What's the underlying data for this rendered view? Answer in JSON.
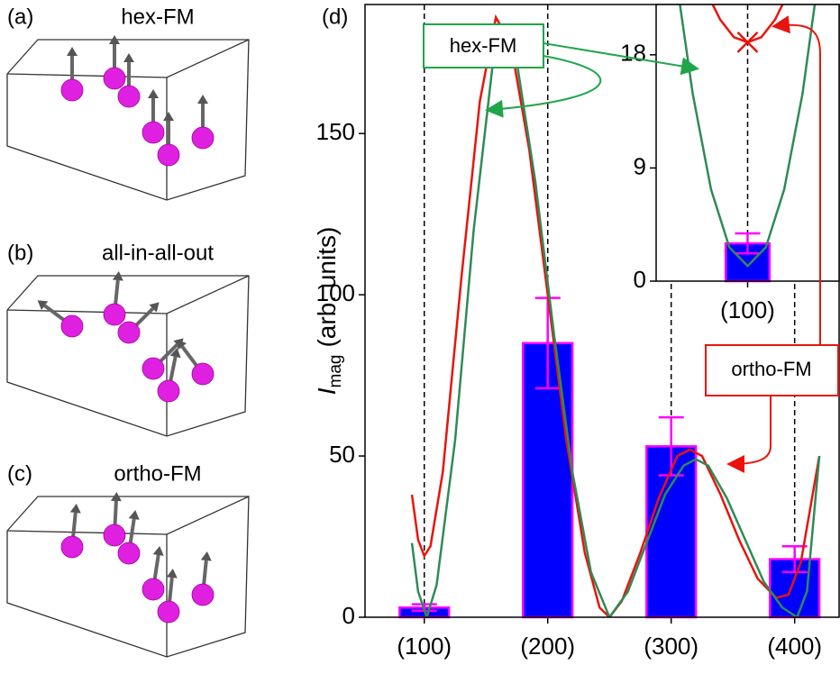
{
  "panels": [
    {
      "label": "(a)",
      "title": "hex-FM"
    },
    {
      "label": "(b)",
      "title": "all-in-all-out"
    },
    {
      "label": "(c)",
      "title": "ortho-FM"
    }
  ],
  "chart_data": [
    {
      "type": "bar",
      "label": "(d)",
      "ylabel": {
        "symbol": "I",
        "subscript": "mag",
        "text": "(arb. units)"
      },
      "x": [
        1,
        2,
        3,
        4
      ],
      "values": [
        3,
        85,
        53,
        18
      ],
      "errors": [
        1,
        14,
        9,
        4
      ],
      "color": "#0000ff",
      "edgecolor": "#ff00ff",
      "xlim": [
        0.52,
        4.36
      ],
      "ylim": [
        0,
        190
      ],
      "xticks": [
        {
          "value": 1,
          "label": "(100)"
        },
        {
          "value": 2,
          "label": "(200)"
        },
        {
          "value": 3,
          "label": "(300)"
        },
        {
          "value": 4,
          "label": "(400)"
        }
      ],
      "yticks": [
        0,
        50,
        100,
        150
      ],
      "grid": "dashed-x",
      "series": [
        {
          "name": "ortho-FM",
          "color": "#e8140c",
          "x": [
            0.9,
            0.95,
            1.0,
            1.05,
            1.15,
            1.3,
            1.45,
            1.58,
            1.7,
            1.85,
            2.0,
            2.15,
            2.3,
            2.42,
            2.5,
            2.6,
            2.75,
            2.9,
            3.05,
            3.15,
            3.25,
            3.4,
            3.55,
            3.7,
            3.85,
            3.95,
            4.05,
            4.2
          ],
          "values": [
            38,
            24,
            19,
            22,
            45,
            105,
            160,
            186,
            178,
            145,
            100,
            55,
            20,
            3,
            0,
            5,
            20,
            37,
            50,
            52,
            50,
            38,
            24,
            12,
            6,
            7,
            17,
            50
          ]
        },
        {
          "name": "hex-FM",
          "color": "#2e8b57",
          "x": [
            0.9,
            0.95,
            1.02,
            1.1,
            1.25,
            1.4,
            1.55,
            1.65,
            1.75,
            1.9,
            2.05,
            2.2,
            2.35,
            2.5,
            2.65,
            2.8,
            2.95,
            3.1,
            3.2,
            3.3,
            3.45,
            3.6,
            3.75,
            3.9,
            4.02,
            4.1,
            4.2
          ],
          "values": [
            23,
            8,
            0,
            10,
            55,
            120,
            170,
            180,
            172,
            135,
            88,
            45,
            14,
            0,
            8,
            23,
            38,
            47,
            49,
            47,
            37,
            24,
            11,
            3,
            0,
            8,
            50
          ]
        }
      ]
    },
    {
      "type": "bar",
      "x": [
        1
      ],
      "values": [
        3
      ],
      "errors": [
        0.8
      ],
      "color": "#0000ff",
      "edgecolor": "#ff00ff",
      "xlim": [
        0.9,
        1.1
      ],
      "ylim": [
        0,
        22
      ],
      "xticks": [
        {
          "value": 1,
          "label": "(100)"
        }
      ],
      "yticks": [
        0,
        9,
        18
      ],
      "grid": "dashed-x",
      "series": [
        {
          "color": "#e8140c",
          "x": [
            0.955,
            0.97,
            0.985,
            1.0,
            1.015,
            1.03,
            1.045
          ],
          "values": [
            23,
            20.8,
            19.4,
            19,
            19.4,
            20.8,
            23
          ]
        },
        {
          "color": "#2e8b57",
          "x": [
            0.926,
            0.94,
            0.96,
            0.98,
            1.0,
            1.02,
            1.04,
            1.06,
            1.08
          ],
          "values": [
            22,
            14.9,
            7.3,
            2.7,
            1.2,
            2.7,
            7.3,
            14.9,
            25.5
          ]
        }
      ],
      "marker": {
        "x": 1,
        "value": 19,
        "color": "#e8140c"
      }
    }
  ]
}
